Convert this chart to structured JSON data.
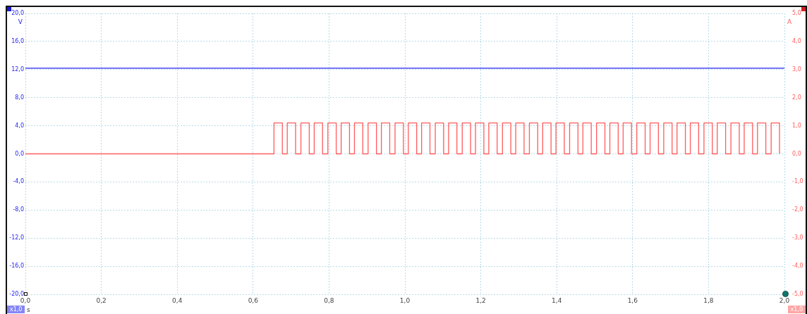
{
  "chart_data": {
    "type": "line",
    "xlabel": "s",
    "ylabel": "V",
    "y2label": "A",
    "xlim": [
      0,
      2
    ],
    "xticks": [
      {
        "value": 0,
        "label": "0,0"
      },
      {
        "value": 0.2,
        "label": "0,2"
      },
      {
        "value": 0.4,
        "label": "0,4"
      },
      {
        "value": 0.6,
        "label": "0,6"
      },
      {
        "value": 0.8,
        "label": "0,8"
      },
      {
        "value": 1,
        "label": "1,0"
      },
      {
        "value": 1.2,
        "label": "1,2"
      },
      {
        "value": 1.4,
        "label": "1,4"
      },
      {
        "value": 1.6,
        "label": "1,6"
      },
      {
        "value": 1.8,
        "label": "1,8"
      },
      {
        "value": 2,
        "label": "2,0"
      }
    ],
    "ylim": [
      -20,
      20
    ],
    "yticks": [
      {
        "value": -20,
        "label": "-20,0"
      },
      {
        "value": -16,
        "label": "-16,0"
      },
      {
        "value": -12,
        "label": "-12,0"
      },
      {
        "value": -8,
        "label": "-8,0"
      },
      {
        "value": -4,
        "label": "-4,0"
      },
      {
        "value": 0,
        "label": "0,0"
      },
      {
        "value": 4,
        "label": "4,0"
      },
      {
        "value": 8,
        "label": "8,0"
      },
      {
        "value": 12,
        "label": "12,0"
      },
      {
        "value": 16,
        "label": "16,0"
      },
      {
        "value": 20,
        "label": "20,0"
      }
    ],
    "y2lim": [
      -5,
      5
    ],
    "y2ticks": [
      {
        "value": -5,
        "label": "-5,0"
      },
      {
        "value": -4,
        "label": "-4,0"
      },
      {
        "value": -3,
        "label": "-3,0"
      },
      {
        "value": -2,
        "label": "-2,0"
      },
      {
        "value": -1,
        "label": "-1,0"
      },
      {
        "value": 0,
        "label": "0,0"
      },
      {
        "value": 1,
        "label": "1,0"
      },
      {
        "value": 2,
        "label": "2,0"
      },
      {
        "value": 3,
        "label": "3,0"
      },
      {
        "value": 4,
        "label": "4,0"
      },
      {
        "value": 5,
        "label": "5,0"
      }
    ],
    "grid": true,
    "legend": false,
    "marker": "none",
    "line_style": "solid",
    "annotations": [
      "x1,0",
      "x1,0"
    ],
    "series": [
      {
        "type": "line",
        "color": "#2323f0",
        "x": [
          0,
          0.1,
          0.2,
          0.3,
          0.4,
          0.5,
          0.6,
          0.7,
          0.8,
          0.9,
          1.0,
          1.1,
          1.2,
          1.3,
          1.4,
          1.5,
          1.6,
          1.7,
          1.8,
          1.9,
          2.0
        ],
        "values": [
          12.2,
          12.2,
          12.2,
          12.2,
          12.2,
          12.2,
          12.2,
          12.2,
          12.2,
          12.2,
          12.2,
          12.2,
          12.2,
          12.2,
          12.2,
          12.2,
          12.2,
          12.2,
          12.2,
          12.2,
          12.2
        ]
      },
      {
        "type": "step",
        "axis": "y2",
        "color": "#ff5c5c",
        "x": [
          0,
          0.655,
          0.677,
          0.69,
          0.712,
          0.726,
          0.748,
          0.761,
          0.783,
          0.797,
          0.819,
          0.832,
          0.854,
          0.867,
          0.889,
          0.903,
          0.925,
          0.938,
          0.96,
          0.974,
          0.996,
          1.009,
          1.031,
          1.044,
          1.066,
          1.08,
          1.102,
          1.115,
          1.137,
          1.151,
          1.173,
          1.186,
          1.208,
          1.221,
          1.243,
          1.257,
          1.279,
          1.292,
          1.314,
          1.328,
          1.35,
          1.363,
          1.385,
          1.398,
          1.42,
          1.434,
          1.456,
          1.469,
          1.491,
          1.505,
          1.527,
          1.54,
          1.562,
          1.575,
          1.597,
          1.611,
          1.633,
          1.646,
          1.668,
          1.682,
          1.704,
          1.717,
          1.739,
          1.752,
          1.774,
          1.788,
          1.81,
          1.823,
          1.845,
          1.859,
          1.881,
          1.894,
          1.916,
          1.929,
          1.951,
          1.965,
          1.987
        ],
        "values": [
          0,
          1.1,
          0,
          1.1,
          0,
          1.1,
          0,
          1.1,
          0,
          1.1,
          0,
          1.1,
          0,
          1.1,
          0,
          1.1,
          0,
          1.1,
          0,
          1.1,
          0,
          1.1,
          0,
          1.1,
          0,
          1.1,
          0,
          1.1,
          0,
          1.1,
          0,
          1.1,
          0,
          1.1,
          0,
          1.1,
          0,
          1.1,
          0,
          1.1,
          0,
          1.1,
          0,
          1.1,
          0,
          1.1,
          0,
          1.1,
          0,
          1.1,
          0,
          1.1,
          0,
          1.1,
          0,
          1.1,
          0,
          1.1,
          0,
          1.1,
          0,
          1.1,
          0,
          1.1,
          0,
          1.1,
          0,
          1.1,
          0,
          1.1,
          0,
          1.1,
          0,
          1.1,
          0,
          1.1,
          0
        ]
      }
    ]
  }
}
